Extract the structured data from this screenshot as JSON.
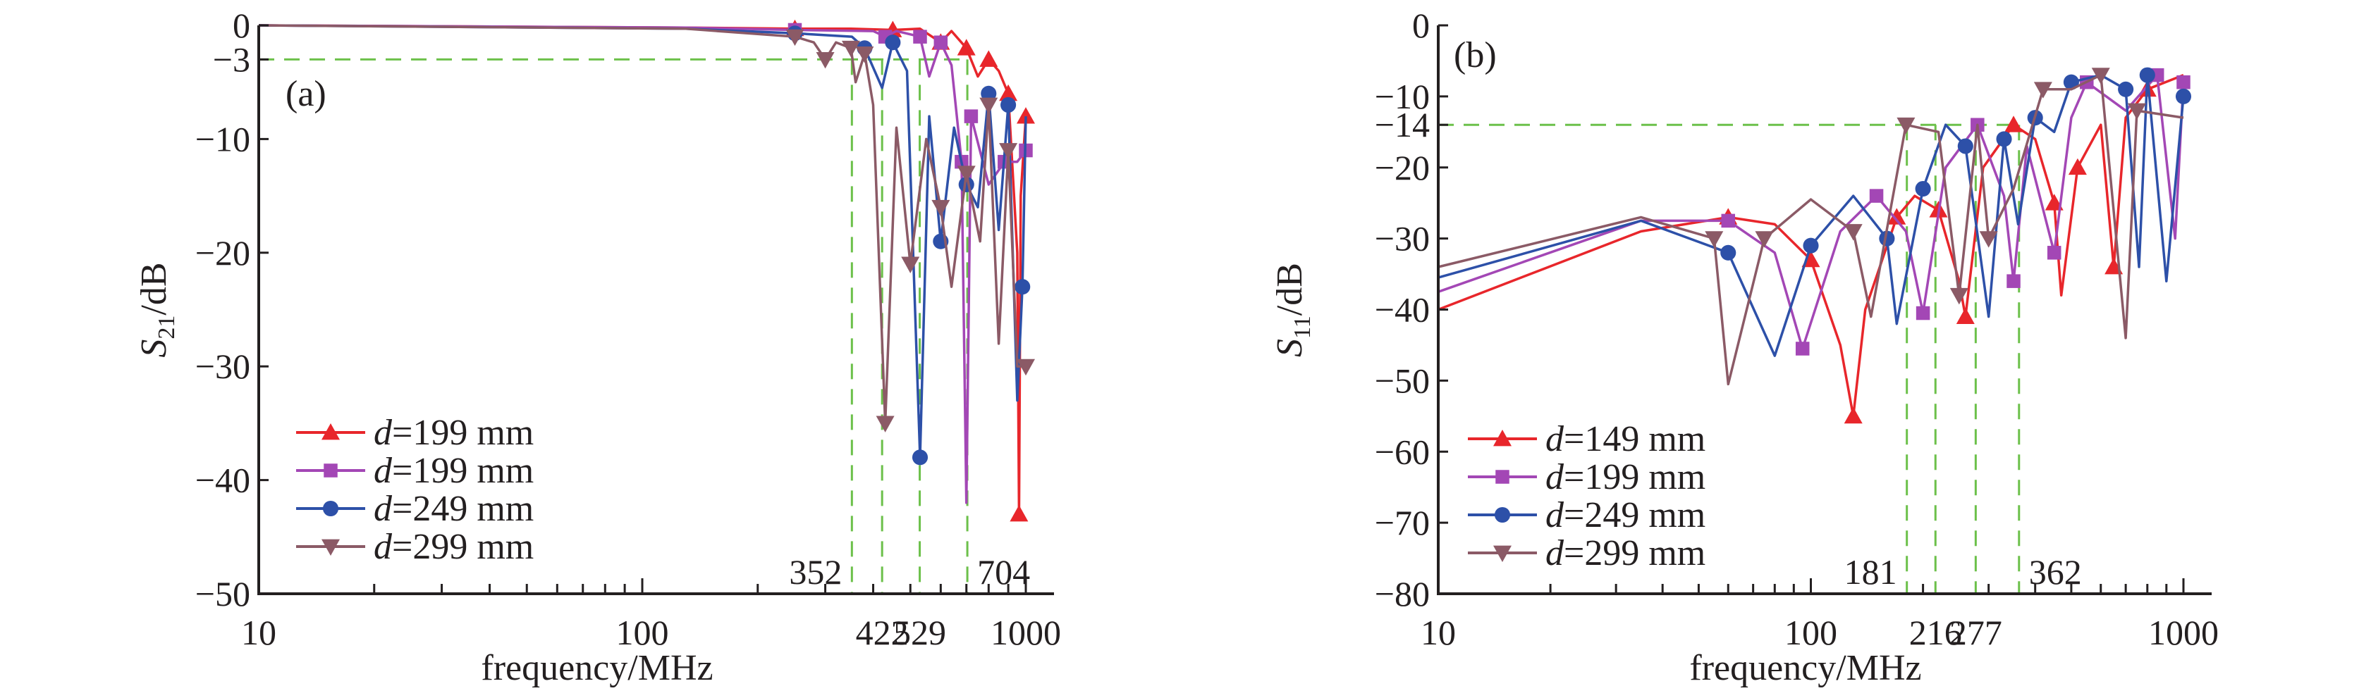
{
  "chart_data": [
    {
      "type": "line",
      "panel_label": "(a)",
      "xlabel": "frequency/MHz",
      "ylabel_main": "S",
      "ylabel_sub": "21",
      "ylabel_unit": "/dB",
      "xscale": "log",
      "xlim": [
        10,
        1000
      ],
      "ylim": [
        -50,
        0
      ],
      "xticks": [
        "10",
        "100",
        "1000"
      ],
      "yticks": [
        0,
        -3,
        -10,
        -20,
        -30,
        -40,
        -50
      ],
      "threshold": {
        "y": -3,
        "freqs": [
          352,
          422,
          529,
          704
        ],
        "labels_inside": [
          "352",
          "704"
        ],
        "labels_axis": [
          "422",
          "529"
        ]
      },
      "legend_position": "bottom-left",
      "series": [
        {
          "name_prefix": "d",
          "name_rest": "=199 mm",
          "color": "#e8262b",
          "marker": "triangle-up",
          "x": [
            10,
            130,
            250,
            350,
            450,
            530,
            600,
            640,
            700,
            750,
            800,
            850,
            900,
            950,
            960,
            970,
            1000
          ],
          "y": [
            0,
            -0.2,
            -0.3,
            -0.3,
            -0.4,
            -0.3,
            -1.5,
            -0.5,
            -2,
            -4.5,
            -3,
            -4,
            -6,
            -20,
            -43,
            -15,
            -8
          ]
        },
        {
          "name_prefix": "d",
          "name_rest": "=199 mm",
          "color": "#a347b5",
          "marker": "square",
          "x": [
            10,
            130,
            250,
            400,
            430,
            460,
            530,
            560,
            600,
            640,
            680,
            700,
            720,
            800,
            880,
            950,
            1000
          ],
          "y": [
            0,
            -0.2,
            -0.4,
            -0.5,
            -1,
            -0.5,
            -1,
            -4.5,
            -1.5,
            -3.5,
            -12,
            -42,
            -8,
            -14,
            -12,
            -12,
            -11
          ]
        },
        {
          "name_prefix": "d",
          "name_rest": "=249 mm",
          "color": "#2d50a8",
          "marker": "circle",
          "x": [
            10,
            130,
            250,
            352,
            380,
            422,
            450,
            490,
            530,
            560,
            600,
            650,
            700,
            750,
            800,
            850,
            900,
            950,
            980,
            1000
          ],
          "y": [
            0,
            -0.3,
            -0.7,
            -1,
            -2,
            -5.5,
            -1.5,
            -4,
            -38,
            -8,
            -19,
            -9,
            -14,
            -16,
            -6,
            -18,
            -7,
            -33,
            -23,
            -8
          ]
        },
        {
          "name_prefix": "d",
          "name_rest": "=299 mm",
          "color": "#8b5a66",
          "marker": "triangle-down",
          "x": [
            10,
            130,
            250,
            280,
            300,
            320,
            350,
            360,
            380,
            400,
            430,
            460,
            500,
            550,
            600,
            640,
            700,
            760,
            800,
            850,
            900,
            950,
            1000
          ],
          "y": [
            0,
            -0.3,
            -1,
            -1.5,
            -3,
            -1.5,
            -2,
            -5,
            -2.5,
            -7,
            -35,
            -9,
            -21,
            -10,
            -16,
            -23,
            -13,
            -19,
            -7,
            -28,
            -11,
            -30,
            -30
          ]
        }
      ]
    },
    {
      "type": "line",
      "panel_label": "(b)",
      "xlabel": "frequency/MHz",
      "ylabel_main": "S",
      "ylabel_sub": "11",
      "ylabel_unit": "/dB",
      "xscale": "log",
      "xlim": [
        10,
        1000
      ],
      "ylim": [
        -80,
        0
      ],
      "xticks": [
        "10",
        "100",
        "1000"
      ],
      "yticks": [
        0,
        -10,
        -14,
        -20,
        -30,
        -40,
        -50,
        -60,
        -70,
        -80
      ],
      "threshold": {
        "y": -14,
        "freqs": [
          181,
          216,
          277,
          362
        ],
        "labels_inside": [
          "181",
          "362"
        ],
        "labels_axis": [
          "216",
          "277"
        ]
      },
      "legend_position": "bottom-left",
      "series": [
        {
          "name_prefix": "d",
          "name_rest": "=149 mm",
          "color": "#e8262b",
          "marker": "triangle-up",
          "x": [
            10,
            35,
            60,
            80,
            100,
            120,
            130,
            140,
            170,
            190,
            220,
            250,
            260,
            290,
            350,
            400,
            450,
            470,
            520,
            600,
            650,
            700,
            800,
            1000
          ],
          "y": [
            -40,
            -29,
            -27,
            -28,
            -33,
            -45,
            -55,
            -40,
            -27,
            -24,
            -26,
            -36,
            -41,
            -20,
            -14,
            -16,
            -25,
            -38,
            -20,
            -14,
            -34,
            -13,
            -9,
            -7
          ]
        },
        {
          "name_prefix": "d",
          "name_rest": "=199 mm",
          "color": "#a347b5",
          "marker": "square",
          "x": [
            10,
            35,
            60,
            80,
            95,
            120,
            150,
            180,
            200,
            230,
            280,
            330,
            350,
            380,
            450,
            500,
            550,
            700,
            850,
            950,
            1000
          ],
          "y": [
            -37.5,
            -27.5,
            -27.5,
            -32,
            -45.5,
            -29,
            -24,
            -29,
            -40.5,
            -20,
            -14,
            -24,
            -36,
            -17,
            -32,
            -13,
            -8,
            -12,
            -7,
            -30,
            -8
          ]
        },
        {
          "name_prefix": "d",
          "name_rest": "=249 mm",
          "color": "#2d50a8",
          "marker": "circle",
          "x": [
            10,
            35,
            60,
            80,
            100,
            130,
            160,
            170,
            200,
            230,
            260,
            300,
            330,
            360,
            400,
            450,
            500,
            600,
            700,
            760,
            800,
            900,
            1000
          ],
          "y": [
            -35.5,
            -27.5,
            -32,
            -46.5,
            -31,
            -24,
            -30,
            -42,
            -23,
            -14,
            -17,
            -41,
            -16,
            -28,
            -13,
            -15,
            -8,
            -7,
            -9,
            -34,
            -7,
            -36,
            -10
          ]
        },
        {
          "name_prefix": "d",
          "name_rest": "=299 mm",
          "color": "#8b5a66",
          "marker": "triangle-down",
          "x": [
            10,
            35,
            55,
            60,
            75,
            100,
            130,
            145,
            180,
            220,
            250,
            280,
            300,
            350,
            420,
            500,
            600,
            700,
            750,
            1000
          ],
          "y": [
            -34,
            -27,
            -30,
            -50.5,
            -30,
            -24.5,
            -29,
            -41,
            -14,
            -15,
            -38,
            -14,
            -30,
            -23,
            -9,
            -9,
            -7,
            -44,
            -12,
            -13
          ]
        }
      ]
    }
  ]
}
